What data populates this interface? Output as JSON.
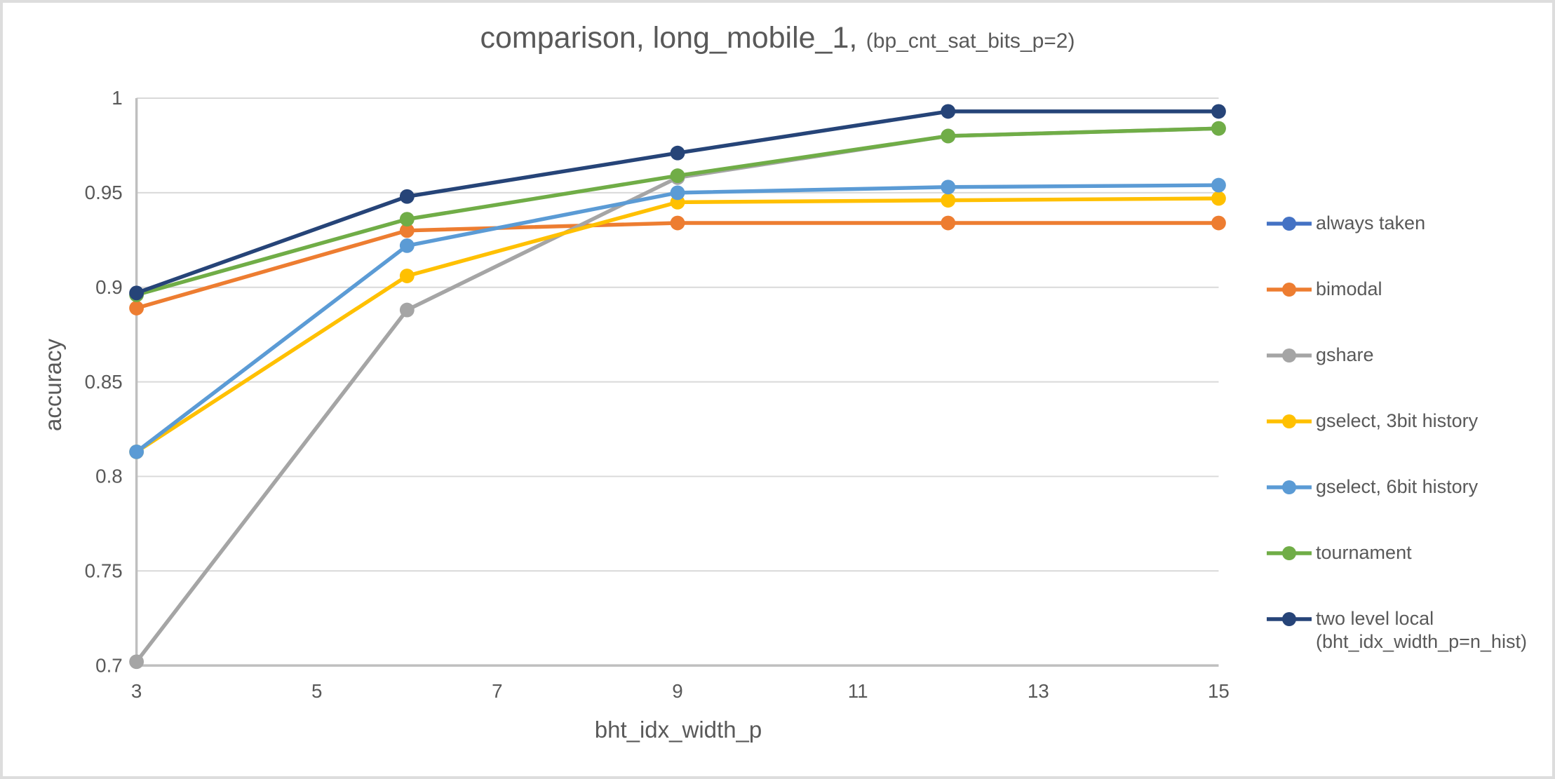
{
  "title": {
    "main": "comparison, long_mobile_1,",
    "suffix": "(bp_cnt_sat_bits_p=2)"
  },
  "axes": {
    "x": {
      "title": "bht_idx_width_p",
      "ticks": [
        3,
        5,
        7,
        9,
        11,
        13,
        15
      ],
      "tick_labels": [
        "3",
        "5",
        "7",
        "9",
        "11",
        "13",
        "15"
      ],
      "range": [
        3,
        15
      ]
    },
    "y": {
      "title": "accuracy",
      "ticks": [
        0.7,
        0.75,
        0.8,
        0.85,
        0.9,
        0.95,
        1.0
      ],
      "tick_labels": [
        "0.7",
        "0.75",
        "0.8",
        "0.85",
        "0.9",
        "0.95",
        "1"
      ],
      "range": [
        0.7,
        1.0
      ]
    }
  },
  "chart_data": {
    "type": "line",
    "title": "comparison, long_mobile_1, (bp_cnt_sat_bits_p=2)",
    "xlabel": "bht_idx_width_p",
    "ylabel": "accuracy",
    "xlim": [
      3,
      15
    ],
    "ylim": [
      0.7,
      1.0
    ],
    "grid": "horizontal",
    "legend_position": "right",
    "x": [
      3,
      6,
      9,
      12,
      15
    ],
    "series": [
      {
        "name": "always taken",
        "slug": "always-taken",
        "color": "#4472C4",
        "values": null,
        "note": "legend entry only; line lies below y-axis minimum (0.7) and is not visible in plot"
      },
      {
        "name": "bimodal",
        "slug": "bimodal",
        "color": "#ED7D31",
        "values": [
          0.889,
          0.93,
          0.934,
          0.934,
          0.934
        ]
      },
      {
        "name": "gshare",
        "slug": "gshare",
        "color": "#A5A5A5",
        "values": [
          0.702,
          0.888,
          0.958,
          0.98,
          0.984
        ]
      },
      {
        "name": "gselect, 3bit history",
        "slug": "gselect-3bit-history",
        "color": "#FFC000",
        "values": [
          0.813,
          0.906,
          0.945,
          0.946,
          0.947
        ]
      },
      {
        "name": "gselect, 6bit history",
        "slug": "gselect-6bit-history",
        "color": "#5B9BD5",
        "values": [
          0.813,
          0.922,
          0.95,
          0.953,
          0.954
        ]
      },
      {
        "name": "tournament",
        "slug": "tournament",
        "color": "#70AD47",
        "values": [
          0.896,
          0.936,
          0.959,
          0.98,
          0.984
        ]
      },
      {
        "name": "two level local (bht_idx_width_p=n_hist)",
        "slug": "two-level-local",
        "color": "#264478",
        "legend_lines": [
          "two level local",
          "(bht_idx_width_p=n_hist)"
        ],
        "values": [
          0.897,
          0.948,
          0.971,
          0.993,
          0.993
        ]
      }
    ],
    "colors": {
      "gridline": "#D9D9D9",
      "axis_line": "#BFBFBF",
      "text": "#595959"
    }
  }
}
